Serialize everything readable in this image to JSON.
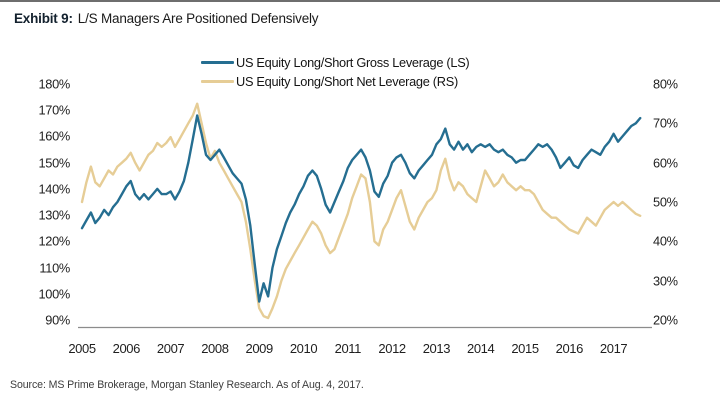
{
  "header": {
    "exhibit_label": "Exhibit 9:",
    "title": "L/S Managers Are Positioned Defensively"
  },
  "legend": [
    {
      "label": "US Equity Long/Short Gross Leverage (LS)",
      "color": "#256e91"
    },
    {
      "label": "US Equity Long/Short Net Leverage (RS)",
      "color": "#e6cd96"
    }
  ],
  "source_note": "Source: MS Prime Brokerage, Morgan Stanley Research. As of Aug. 4, 2017.",
  "colors": {
    "gross_line": "#256e91",
    "net_line": "#e6cd96",
    "axis_line": "#8c8c8c",
    "text": "#1f1f1f"
  },
  "chart_data": {
    "type": "line",
    "title": "Exhibit 9: L/S Managers Are Positioned Defensively",
    "legend_position": "top-center",
    "grid": false,
    "x_axis": {
      "ticks": [
        "2005",
        "2006",
        "2007",
        "2008",
        "2009",
        "2010",
        "2011",
        "2012",
        "2013",
        "2014",
        "2015",
        "2016",
        "2017"
      ],
      "min": 2005.0,
      "max": 2017.7
    },
    "left_axis": {
      "ticks": [
        "180%",
        "170%",
        "160%",
        "150%",
        "140%",
        "130%",
        "120%",
        "110%",
        "100%",
        "90%"
      ],
      "min": 90,
      "max": 180,
      "unit": "%"
    },
    "right_axis": {
      "ticks": [
        "80%",
        "70%",
        "60%",
        "50%",
        "40%",
        "30%",
        "20%"
      ],
      "min": 20,
      "max": 80,
      "unit": "%"
    },
    "x": [
      2005.0,
      2005.1,
      2005.2,
      2005.3,
      2005.4,
      2005.5,
      2005.6,
      2005.7,
      2005.8,
      2005.9,
      2006.0,
      2006.1,
      2006.2,
      2006.3,
      2006.4,
      2006.5,
      2006.6,
      2006.7,
      2006.8,
      2006.9,
      2007.0,
      2007.1,
      2007.2,
      2007.3,
      2007.4,
      2007.5,
      2007.6,
      2007.7,
      2007.8,
      2007.9,
      2008.0,
      2008.1,
      2008.2,
      2008.3,
      2008.4,
      2008.5,
      2008.6,
      2008.7,
      2008.8,
      2008.9,
      2009.0,
      2009.1,
      2009.2,
      2009.3,
      2009.4,
      2009.5,
      2009.6,
      2009.7,
      2009.8,
      2009.9,
      2010.0,
      2010.1,
      2010.2,
      2010.3,
      2010.4,
      2010.5,
      2010.6,
      2010.7,
      2010.8,
      2010.9,
      2011.0,
      2011.1,
      2011.2,
      2011.3,
      2011.4,
      2011.5,
      2011.6,
      2011.7,
      2011.8,
      2011.9,
      2012.0,
      2012.1,
      2012.2,
      2012.3,
      2012.4,
      2012.5,
      2012.6,
      2012.7,
      2012.8,
      2012.9,
      2013.0,
      2013.1,
      2013.2,
      2013.3,
      2013.4,
      2013.5,
      2013.6,
      2013.7,
      2013.8,
      2013.9,
      2014.0,
      2014.1,
      2014.2,
      2014.3,
      2014.4,
      2014.5,
      2014.6,
      2014.7,
      2014.8,
      2014.9,
      2015.0,
      2015.1,
      2015.2,
      2015.3,
      2015.4,
      2015.5,
      2015.6,
      2015.7,
      2015.8,
      2015.9,
      2016.0,
      2016.1,
      2016.2,
      2016.3,
      2016.4,
      2016.5,
      2016.6,
      2016.7,
      2016.8,
      2016.9,
      2017.0,
      2017.1,
      2017.2,
      2017.3,
      2017.4,
      2017.5,
      2017.6
    ],
    "series": [
      {
        "name": "US Equity Long/Short Gross Leverage (LS)",
        "axis": "left",
        "color": "#256e91",
        "values": [
          125,
          128,
          131,
          127,
          129,
          132,
          130,
          133,
          135,
          138,
          141,
          143,
          138,
          136,
          138,
          136,
          138,
          140,
          138,
          138,
          139,
          136,
          139,
          143,
          150,
          159,
          168,
          161,
          153,
          151,
          153,
          155,
          152,
          149,
          146,
          144,
          142,
          136,
          126,
          111,
          97,
          104,
          99,
          110,
          117,
          122,
          127,
          131,
          134,
          138,
          141,
          145,
          147,
          145,
          140,
          134,
          131,
          135,
          139,
          143,
          148,
          151,
          153,
          155,
          152,
          147,
          139,
          137,
          142,
          145,
          150,
          152,
          153,
          150,
          146,
          144,
          147,
          149,
          151,
          153,
          157,
          159,
          163,
          157,
          155,
          158,
          155,
          157,
          154,
          156,
          157,
          156,
          157,
          155,
          154,
          155,
          153,
          152,
          150,
          151,
          151,
          153,
          155,
          157,
          156,
          157,
          155,
          152,
          148,
          150,
          152,
          149,
          148,
          151,
          153,
          155,
          154,
          153,
          156,
          158,
          161,
          158,
          160,
          162,
          164,
          165,
          167
        ]
      },
      {
        "name": "US Equity Long/Short Net Leverage (RS)",
        "axis": "right",
        "color": "#e6cd96",
        "values": [
          50,
          55,
          59,
          55,
          54,
          56,
          58,
          57,
          59,
          60,
          61,
          62.5,
          60,
          58,
          60,
          62,
          63,
          65,
          64,
          65,
          66.5,
          64,
          66,
          68,
          70,
          72,
          75,
          70,
          65,
          61,
          63,
          60,
          58,
          56,
          54,
          52,
          50,
          45,
          38,
          30,
          23,
          21,
          20.5,
          23,
          26,
          30,
          33,
          35,
          37,
          39,
          41,
          43,
          45,
          44,
          42,
          39,
          37,
          38,
          41,
          44,
          47,
          51,
          54,
          57,
          56,
          50,
          40,
          39,
          43,
          45,
          48,
          51,
          53,
          49,
          45,
          43,
          46,
          48,
          50,
          51,
          53,
          58,
          61,
          56,
          53,
          55,
          54,
          52,
          51,
          50,
          54,
          58,
          56,
          54,
          55,
          57,
          55,
          54,
          53,
          54,
          53,
          53,
          52,
          50,
          48,
          47,
          46,
          46,
          45,
          44,
          43,
          42.5,
          42,
          44,
          46,
          45,
          44,
          46,
          48,
          49,
          50,
          49,
          50,
          49,
          48,
          47,
          46.5
        ]
      }
    ]
  }
}
